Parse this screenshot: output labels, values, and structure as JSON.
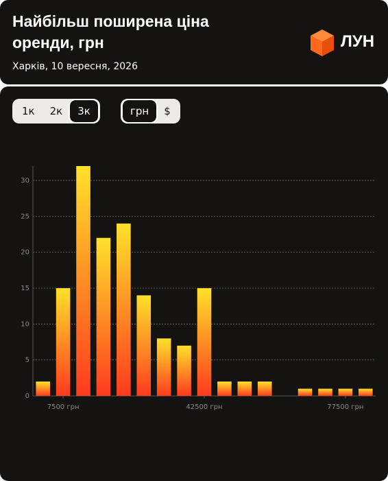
{
  "header": {
    "logo": "ЛУН"
  },
  "controls": {
    "rooms": [
      "1к",
      "2к",
      "3к"
    ],
    "active_room": 2,
    "currency": [
      "грн",
      "$"
    ],
    "active_currency": 0
  },
  "chart_data": {
    "type": "bar",
    "title": "Найбільш поширена ціна оренди, грн",
    "subtitle": "Харків, 10 вересня, 2026",
    "x": [
      2500,
      7500,
      12500,
      17500,
      22500,
      27500,
      32500,
      37500,
      42500,
      47500,
      52500,
      57500,
      62500,
      67500,
      72500,
      77500,
      82500
    ],
    "values": [
      2,
      15,
      32,
      22,
      24,
      14,
      8,
      7,
      15,
      2,
      2,
      2,
      0,
      1,
      1,
      1,
      1
    ],
    "xlim": [
      0,
      85000
    ],
    "xticks": [
      {
        "value": 7500,
        "label": "7500 грн"
      },
      {
        "value": 42500,
        "label": "42500 грн"
      },
      {
        "value": 77500,
        "label": "77500 грн"
      }
    ],
    "ylim": [
      0,
      32
    ],
    "yticks": [
      0,
      5,
      10,
      15,
      20,
      25,
      30
    ],
    "grid": true,
    "color_top": "#ffe12b",
    "color_bottom": "#ff3a1e"
  }
}
